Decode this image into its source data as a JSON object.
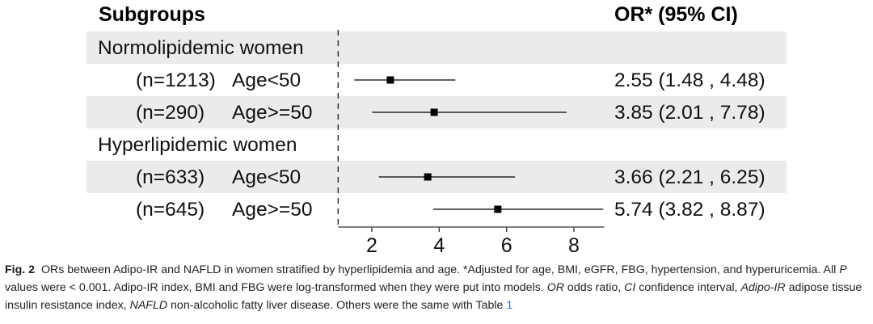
{
  "header": {
    "subgroups": "Subgroups",
    "or_ci": "OR* (95% CI)"
  },
  "chart_data": {
    "type": "forest",
    "x_axis": {
      "ticks": [
        2,
        4,
        6,
        8
      ],
      "range": [
        1.0,
        8.9
      ],
      "reference_line": 1.0
    },
    "rows": [
      {
        "kind": "group",
        "label": "Normolipidemic women",
        "shaded": true
      },
      {
        "kind": "item",
        "n": "(n=1213)",
        "age": "Age<50",
        "or": 2.55,
        "lo": 1.48,
        "hi": 4.48,
        "text": "2.55 (1.48 , 4.48)",
        "shaded": false
      },
      {
        "kind": "item",
        "n": "(n=290)",
        "age": "Age>=50",
        "or": 3.85,
        "lo": 2.01,
        "hi": 7.78,
        "text": "3.85 (2.01 , 7.78)",
        "shaded": true
      },
      {
        "kind": "group",
        "label": "Hyperlipidemic women",
        "shaded": false
      },
      {
        "kind": "item",
        "n": "(n=633)",
        "age": "Age<50",
        "or": 3.66,
        "lo": 2.21,
        "hi": 6.25,
        "text": "3.66 (2.21 , 6.25)",
        "shaded": true
      },
      {
        "kind": "item",
        "n": "(n=645)",
        "age": "Age>=50",
        "or": 5.74,
        "lo": 3.82,
        "hi": 8.87,
        "text": "5.74 (3.82 , 8.87)",
        "shaded": false
      }
    ]
  },
  "caption": {
    "figno": "Fig. 2",
    "t1": "ORs between Adipo-IR and NAFLD in women stratified by hyperlipidemia and age. *Adjusted for age, BMI, eGFR, FBG, hypertension, and hyperuricemia. All ",
    "p": "P",
    "t2": " values were < 0.001. Adipo-IR index, BMI and FBG were log-transformed when they were put into models. ",
    "or_abbr": "OR",
    "t3": " odds ratio, ",
    "ci_abbr": "CI",
    "t4": " confidence interval, ",
    "adipo_abbr": "Adipo-IR",
    "t5": " adipose tissue insulin resistance index, ",
    "nafld_abbr": "NAFLD",
    "t6": " non-alcoholic fatty liver disease. Others were the same with Table ",
    "table_ref": "1"
  }
}
